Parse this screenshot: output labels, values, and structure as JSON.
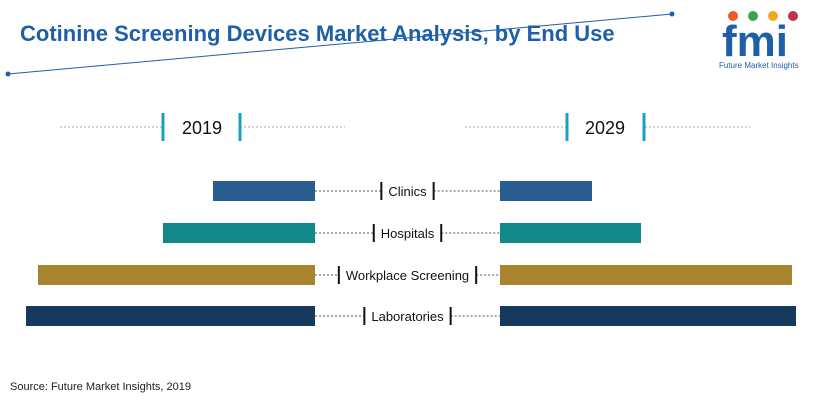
{
  "chart_data": {
    "type": "bar",
    "subtype": "butterfly",
    "title": "Cotinine Screening Devices Market Analysis, by End Use",
    "categories": [
      "Clinics",
      "Hospitals",
      "Workplace Screening",
      "Laboratories"
    ],
    "series": [
      {
        "name": "2019",
        "values": [
          102,
          152,
          277,
          289
        ],
        "side": "left"
      },
      {
        "name": "2029",
        "values": [
          92,
          141,
          292,
          296
        ],
        "side": "right"
      }
    ],
    "colors": [
      "#2a5d8f",
      "#11898a",
      "#a8842f",
      "#163a5e"
    ],
    "unit": "relative scale (no axis shown)",
    "xlabel": "",
    "ylabel": "",
    "source": "Source: Future Market Insights, 2019"
  },
  "brand": {
    "logo_text": "fmi",
    "logo_subtitle": "Future Market Insights",
    "accent": "#1f5fa8",
    "marker_color": "#1aa0c8"
  }
}
